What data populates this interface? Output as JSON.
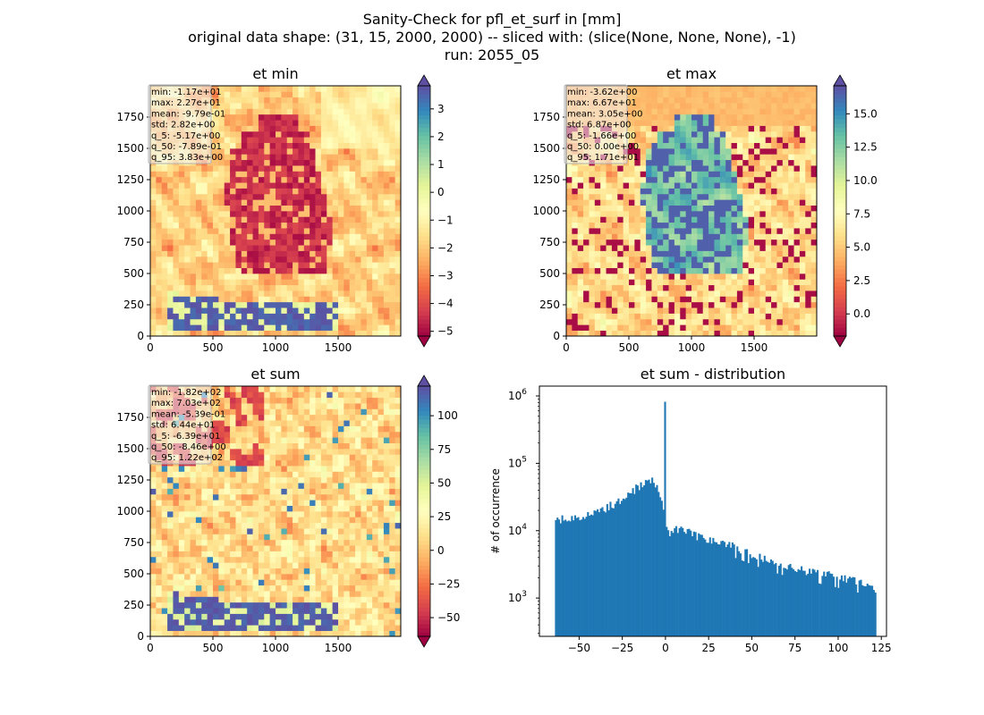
{
  "figure": {
    "suptitle_lines": [
      "Sanity-Check for pfl_et_surf in [mm]",
      "original data shape: (31, 15, 2000, 2000) -- sliced with: (slice(None, None, None), -1)",
      "run: 2055_05"
    ]
  },
  "chart_data": [
    {
      "type": "heatmap",
      "title": "et min",
      "xlim": [
        0,
        2000
      ],
      "ylim": [
        0,
        2000
      ],
      "xticks": [
        0,
        500,
        1000,
        1500
      ],
      "yticks": [
        0,
        250,
        500,
        750,
        1000,
        1250,
        1500,
        1750
      ],
      "colormap": "Spectral",
      "colorbar": {
        "range": [
          -5.17,
          3.83
        ],
        "ticks": [
          -5,
          -4,
          -3,
          -2,
          -1,
          0,
          1,
          2,
          3
        ],
        "extend": "both"
      },
      "stats": [
        "min: -1.17e+01",
        "max: 2.27e+01",
        "mean: -9.79e-01",
        "std: 2.82e+00",
        "q_5: -5.17e+00",
        "q_50: -7.89e-01",
        "q_95: 3.83e+00"
      ]
    },
    {
      "type": "heatmap",
      "title": "et max",
      "xlim": [
        0,
        2000
      ],
      "ylim": [
        0,
        2000
      ],
      "xticks": [
        0,
        500,
        1000,
        1500
      ],
      "yticks": [
        0,
        250,
        500,
        750,
        1000,
        1250,
        1500,
        1750
      ],
      "colormap": "Spectral",
      "colorbar": {
        "range": [
          -1.66,
          17.1
        ],
        "ticks": [
          0.0,
          2.5,
          5.0,
          7.5,
          10.0,
          12.5,
          15.0
        ],
        "tick_labels": [
          "0.0",
          "2.5",
          "5.0",
          "7.5",
          "10.0",
          "12.5",
          "15.0"
        ],
        "extend": "both"
      },
      "stats": [
        "min: -3.62e+00",
        "max: 6.67e+01",
        "mean: 3.05e+00",
        "std: 6.87e+00",
        "q_5: -1.66e+00",
        "q_50: 0.00e+00",
        "q_95: 1.71e+01"
      ]
    },
    {
      "type": "heatmap",
      "title": "et sum",
      "xlim": [
        0,
        2000
      ],
      "ylim": [
        0,
        2000
      ],
      "xticks": [
        0,
        500,
        1000,
        1500
      ],
      "yticks": [
        0,
        250,
        500,
        750,
        1000,
        1250,
        1500,
        1750
      ],
      "colormap": "Spectral",
      "colorbar": {
        "range": [
          -63.9,
          122
        ],
        "ticks": [
          -50,
          -25,
          0,
          25,
          50,
          75,
          100
        ],
        "extend": "both"
      },
      "stats": [
        "min: -1.82e+02",
        "max: 7.03e+02",
        "mean: -5.39e-01",
        "std: 6.44e+01",
        "q_5: -6.39e+01",
        "q_50: -8.46e+00",
        "q_95: 1.22e+02"
      ]
    },
    {
      "type": "bar",
      "title": "et sum - distribution",
      "ylabel": "# of occurrence",
      "yscale": "log",
      "xlim": [
        -73,
        128
      ],
      "ylim": [
        270,
        1400000
      ],
      "xticks": [
        -50,
        -25,
        0,
        25,
        50,
        75,
        100,
        125
      ],
      "ytick_exponents": [
        3,
        4,
        5,
        6
      ],
      "color": "#1f77b4",
      "anchors": [
        [
          -64,
          12500
        ],
        [
          -62,
          15000
        ],
        [
          -55,
          15000
        ],
        [
          -50,
          15800
        ],
        [
          -45,
          16800
        ],
        [
          -40,
          18000
        ],
        [
          -35,
          21500
        ],
        [
          -30,
          25000
        ],
        [
          -25,
          31000
        ],
        [
          -20,
          37000
        ],
        [
          -15,
          46000
        ],
        [
          -12,
          52000
        ],
        [
          -8,
          55000
        ],
        [
          -5,
          43000
        ],
        [
          -2,
          32000
        ],
        [
          -0.8,
          19000
        ],
        [
          0,
          820000
        ],
        [
          0.6,
          13000
        ],
        [
          2,
          9000
        ],
        [
          5,
          11000
        ],
        [
          10,
          10000
        ],
        [
          20,
          8200
        ],
        [
          30,
          6800
        ],
        [
          40,
          5800
        ],
        [
          50,
          4600
        ],
        [
          60,
          3700
        ],
        [
          70,
          3100
        ],
        [
          80,
          2600
        ],
        [
          90,
          2400
        ],
        [
          100,
          2100
        ],
        [
          110,
          1800
        ],
        [
          118,
          1500
        ],
        [
          122,
          1300
        ]
      ]
    }
  ]
}
